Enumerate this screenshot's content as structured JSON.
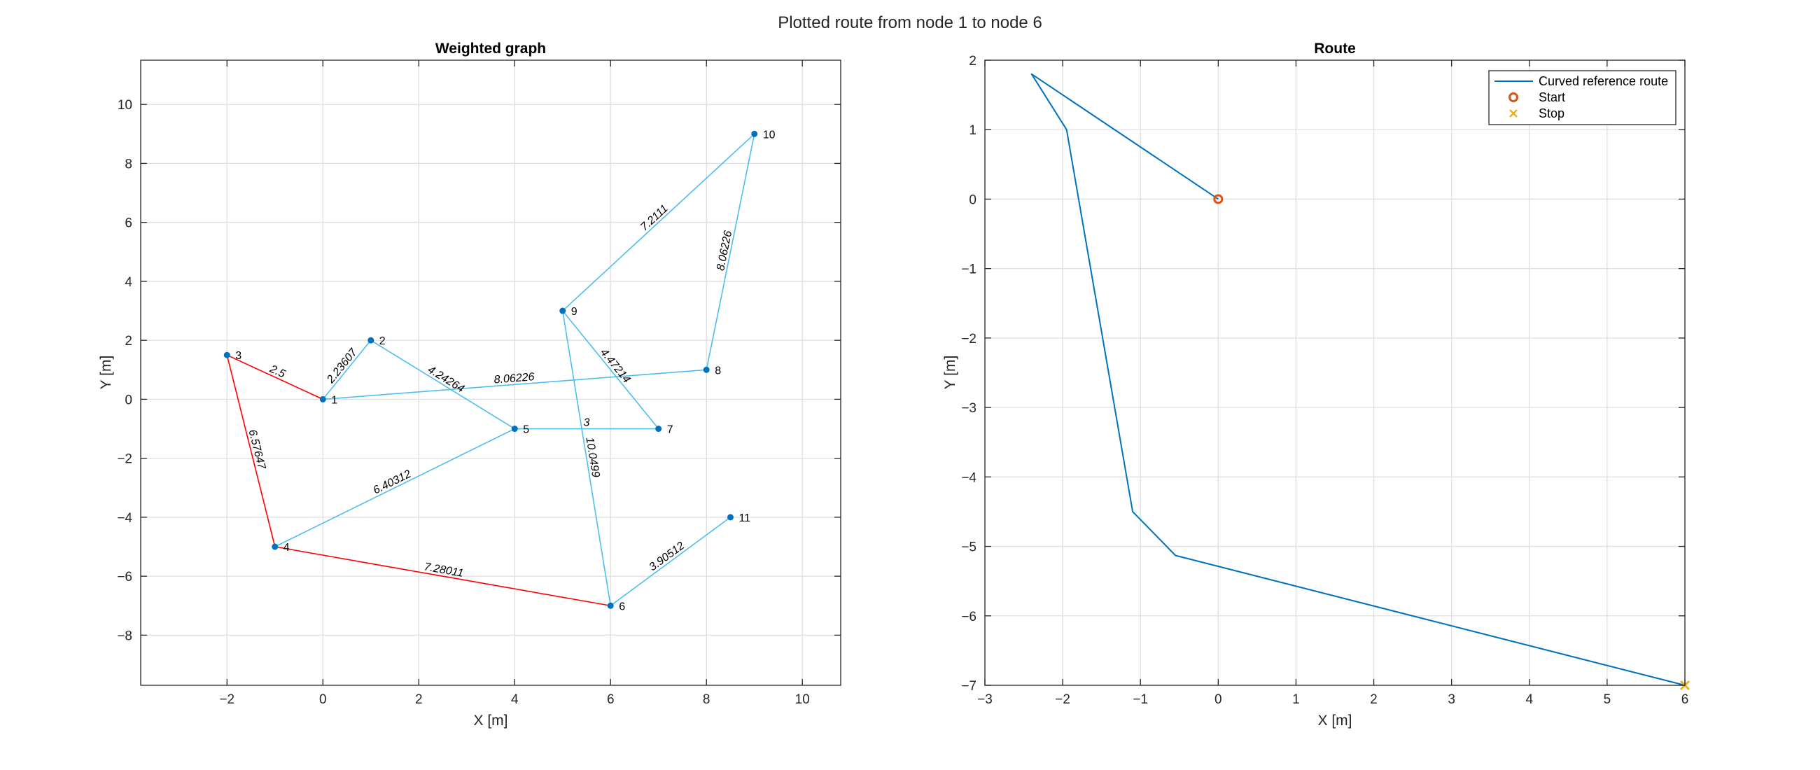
{
  "figure": {
    "title": "Plotted route from node 1 to node 6",
    "colors": {
      "edge": "#4DBEEE",
      "highlight": "#FF0000",
      "node": "#0072BD",
      "route": "#0072BD",
      "start": "#D95319",
      "stop": "#EDB120"
    }
  },
  "chart_data": [
    {
      "type": "graph",
      "title": "Weighted graph",
      "xlabel": "X [m]",
      "ylabel": "Y [m]",
      "xlim": [
        -3.8,
        10.8
      ],
      "ylim": [
        -9.7,
        11.5
      ],
      "xticks": [
        -2,
        0,
        2,
        4,
        6,
        8,
        10
      ],
      "yticks": [
        -8,
        -6,
        -4,
        -2,
        0,
        2,
        4,
        6,
        8,
        10
      ],
      "grid": true,
      "nodes": [
        {
          "id": "1",
          "x": 0,
          "y": 0
        },
        {
          "id": "2",
          "x": 1,
          "y": 2
        },
        {
          "id": "3",
          "x": -2,
          "y": 1.5
        },
        {
          "id": "4",
          "x": -1,
          "y": -5
        },
        {
          "id": "5",
          "x": 4,
          "y": -1
        },
        {
          "id": "6",
          "x": 6,
          "y": -7
        },
        {
          "id": "7",
          "x": 7,
          "y": -1
        },
        {
          "id": "8",
          "x": 8,
          "y": 1
        },
        {
          "id": "9",
          "x": 5,
          "y": 3
        },
        {
          "id": "10",
          "x": 9,
          "y": 9
        },
        {
          "id": "11",
          "x": 8.5,
          "y": -4
        }
      ],
      "edges": [
        {
          "from": "1",
          "to": "2",
          "weight": "2.23607",
          "highlighted": false
        },
        {
          "from": "1",
          "to": "3",
          "weight": "2.5",
          "highlighted": true
        },
        {
          "from": "1",
          "to": "8",
          "weight": "8.06226",
          "highlighted": false
        },
        {
          "from": "2",
          "to": "5",
          "weight": "4.24264",
          "highlighted": false
        },
        {
          "from": "3",
          "to": "4",
          "weight": "6.57647",
          "highlighted": true
        },
        {
          "from": "4",
          "to": "5",
          "weight": "6.40312",
          "highlighted": false
        },
        {
          "from": "4",
          "to": "6",
          "weight": "7.28011",
          "highlighted": true
        },
        {
          "from": "5",
          "to": "7",
          "weight": "3",
          "highlighted": false
        },
        {
          "from": "6",
          "to": "9",
          "weight": "10.0499",
          "highlighted": false
        },
        {
          "from": "6",
          "to": "11",
          "weight": "3.90512",
          "highlighted": false
        },
        {
          "from": "7",
          "to": "9",
          "weight": "4.47214",
          "highlighted": false
        },
        {
          "from": "8",
          "to": "10",
          "weight": "8.06226",
          "highlighted": false
        },
        {
          "from": "9",
          "to": "10",
          "weight": "7.2111",
          "highlighted": false
        }
      ]
    },
    {
      "type": "line",
      "title": "Route",
      "xlabel": "X [m]",
      "ylabel": "Y [m]",
      "xlim": [
        -3,
        6
      ],
      "ylim": [
        -7,
        2
      ],
      "xticks": [
        -3,
        -2,
        -1,
        0,
        1,
        2,
        3,
        4,
        5,
        6
      ],
      "yticks": [
        -7,
        -6,
        -5,
        -4,
        -3,
        -2,
        -1,
        0,
        1,
        2
      ],
      "grid": true,
      "legend_position": "top-right",
      "series": [
        {
          "name": "Curved reference route",
          "x": [
            0,
            -2.4,
            -1.95,
            -1.1,
            -0.55,
            6
          ],
          "y": [
            0,
            1.8,
            1.0,
            -4.5,
            -5.13,
            -7
          ]
        }
      ],
      "start": {
        "name": "Start",
        "x": 0,
        "y": 0
      },
      "stop": {
        "name": "Stop",
        "x": 6,
        "y": -7
      }
    }
  ]
}
